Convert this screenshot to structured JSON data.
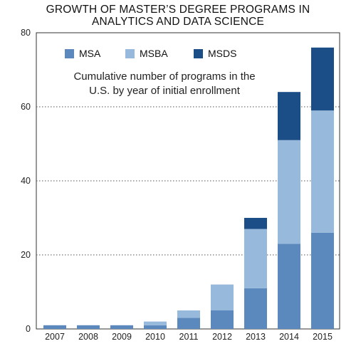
{
  "chart_data": {
    "type": "bar",
    "stacked": true,
    "title_line1": "GROWTH OF MASTER’S DEGREE PROGRAMS IN",
    "title_line2": "ANALYTICS AND DATA SCIENCE",
    "annotation_line1": "Cumulative number of programs in the",
    "annotation_line2": "U.S. by year of initial enrollment",
    "categories": [
      "2007",
      "2008",
      "2009",
      "2010",
      "2011",
      "2012",
      "2013",
      "2014",
      "2015"
    ],
    "series": [
      {
        "name": "MSA",
        "color": "#5b88bd",
        "values": [
          1,
          1,
          1,
          1,
          3,
          5,
          11,
          23,
          26
        ]
      },
      {
        "name": "MSBA",
        "color": "#96b9dc",
        "values": [
          0,
          0,
          0,
          1,
          2,
          7,
          16,
          28,
          33
        ]
      },
      {
        "name": "MSDS",
        "color": "#1b4d87",
        "values": [
          0,
          0,
          0,
          0,
          0,
          0,
          3,
          13,
          17
        ]
      }
    ],
    "ylim": [
      0,
      80
    ],
    "yticks": [
      "0",
      "20",
      "40",
      "60",
      "80"
    ],
    "legend_position": "top-left",
    "grid": "horizontal dotted"
  }
}
